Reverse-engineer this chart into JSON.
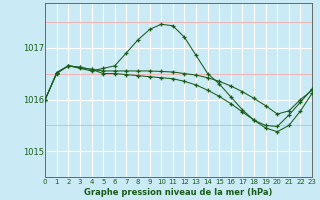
{
  "title": "Graphe pression niveau de la mer (hPa)",
  "background_color": "#caeaf5",
  "grid_color_major": "#ffffff",
  "grid_color_minor_h": "#f5aaaa",
  "grid_color_minor_v": "#ffffff",
  "line_color": "#1a5c1a",
  "xlim": [
    0,
    23
  ],
  "ylim": [
    1014.5,
    1017.85
  ],
  "yticks": [
    1015,
    1016,
    1017
  ],
  "xticks": [
    0,
    1,
    2,
    3,
    4,
    5,
    6,
    7,
    8,
    9,
    10,
    11,
    12,
    13,
    14,
    15,
    16,
    17,
    18,
    19,
    20,
    21,
    22,
    23
  ],
  "series": [
    [
      1016.0,
      1016.5,
      1016.65,
      1016.6,
      1016.55,
      1016.6,
      1016.65,
      1016.9,
      1017.15,
      1017.35,
      1017.45,
      1017.42,
      1017.2,
      1016.85,
      1016.5,
      1016.3,
      1016.05,
      1015.8,
      1015.6,
      1015.5,
      1015.48,
      1015.7,
      1015.95,
      1016.2
    ],
    [
      1016.0,
      1016.52,
      1016.65,
      1016.62,
      1016.58,
      1016.55,
      1016.55,
      1016.55,
      1016.55,
      1016.55,
      1016.54,
      1016.53,
      1016.5,
      1016.47,
      1016.42,
      1016.35,
      1016.26,
      1016.15,
      1016.02,
      1015.88,
      1015.72,
      1015.78,
      1016.0,
      1016.18
    ],
    [
      1016.0,
      1016.52,
      1016.65,
      1016.62,
      1016.58,
      1016.5,
      1016.5,
      1016.48,
      1016.46,
      1016.44,
      1016.42,
      1016.4,
      1016.35,
      1016.28,
      1016.18,
      1016.06,
      1015.92,
      1015.76,
      1015.6,
      1015.45,
      1015.38,
      1015.5,
      1015.78,
      1016.12
    ]
  ]
}
